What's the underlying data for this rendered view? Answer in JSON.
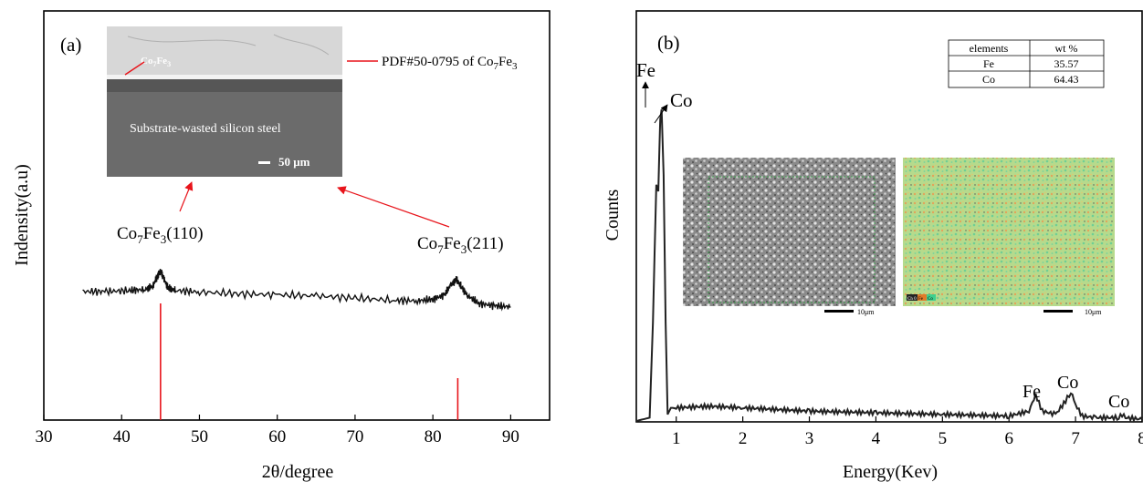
{
  "panel_a": {
    "label": "(a)",
    "peak_label_1_main": "Co",
    "peak_label_1_sub1": "7",
    "peak_label_1_mid": "Fe",
    "peak_label_1_sub2": "3",
    "peak_label_1_end": "(110)",
    "peak_label_2_main": "Co",
    "peak_label_2_sub1": "7",
    "peak_label_2_mid": "Fe",
    "peak_label_2_sub2": "3",
    "peak_label_2_end": "(211)",
    "pdf_label_main": "PDF#50-0795 of Co",
    "pdf_label_sub1": "7",
    "pdf_label_mid": "Fe",
    "pdf_label_sub2": "3",
    "inset": {
      "coating_label_main": "Co",
      "coating_label_sub1": "7",
      "coating_label_mid": "Fe",
      "coating_label_sub2": "3",
      "substrate_label": "Substrate-wasted silicon steel",
      "scalebar_label": "50 μm"
    }
  },
  "panel_b": {
    "label": "(b)",
    "peak_labels": [
      "Fe",
      "Co",
      "Fe",
      "Co",
      "Co"
    ],
    "table": {
      "headers": [
        "elements",
        "wt %"
      ],
      "rows": [
        [
          "Fe",
          "35.57"
        ],
        [
          "Co",
          "64.43"
        ]
      ]
    },
    "inset_left_scalebar": "10μm",
    "inset_right_scalebar": "10μm",
    "map_legend": [
      "Ch 0",
      "Fe",
      "Co"
    ]
  },
  "colors": {
    "curve": "#111111",
    "reference_lines": "#e8141b",
    "arrows": "#e8141b",
    "sem_bg": "#6e6e6e",
    "map_bg": "#b7d98a"
  },
  "chart_data": [
    {
      "type": "line",
      "panel": "a",
      "xlabel": "2θ/degree",
      "ylabel": "Indensity(a.u)",
      "xlim": [
        30,
        95
      ],
      "xticks": [
        30,
        40,
        50,
        60,
        70,
        80,
        90
      ],
      "series": [
        {
          "x": [
            35,
            38,
            41,
            43,
            44,
            44.6,
            45,
            45.4,
            46,
            47,
            50,
            55,
            60,
            65,
            70,
            75,
            78,
            80,
            81.5,
            82.3,
            83,
            83.7,
            84.5,
            86,
            88,
            90
          ],
          "values": [
            1.0,
            1.0,
            1.05,
            1.1,
            1.25,
            1.7,
            1.95,
            1.6,
            1.15,
            1.05,
            0.98,
            0.9,
            0.85,
            0.8,
            0.7,
            0.6,
            0.58,
            0.65,
            0.85,
            1.3,
            1.55,
            1.2,
            0.8,
            0.45,
            0.35,
            0.3
          ]
        }
      ],
      "reference_lines": [
        {
          "x": 45,
          "label": "PDF#50-0795 of Co7Fe3"
        },
        {
          "x": 83.2
        }
      ]
    },
    {
      "type": "line",
      "panel": "b",
      "xlabel": "Energy(Kev)",
      "ylabel": "Counts",
      "xlim": [
        0.4,
        8
      ],
      "xticks": [
        1,
        2,
        3,
        4,
        5,
        6,
        7,
        8
      ],
      "series": [
        {
          "x": [
            0.4,
            0.6,
            0.65,
            0.7,
            0.73,
            0.76,
            0.78,
            0.81,
            0.84,
            0.87,
            0.92,
            1.0,
            1.5,
            2.0,
            3.0,
            4.0,
            5.0,
            6.0,
            6.3,
            6.4,
            6.5,
            6.7,
            6.85,
            6.93,
            7.0,
            7.1,
            7.3,
            7.65,
            7.7,
            7.75,
            8.0
          ],
          "values": [
            0,
            1,
            30,
            72,
            70,
            92,
            95,
            75,
            30,
            2,
            4,
            4,
            4.5,
            4,
            3,
            2.5,
            2,
            1.5,
            3,
            8,
            3,
            2,
            6,
            9,
            5,
            1.5,
            1,
            1,
            2,
            1,
            0.5
          ]
        }
      ]
    }
  ]
}
